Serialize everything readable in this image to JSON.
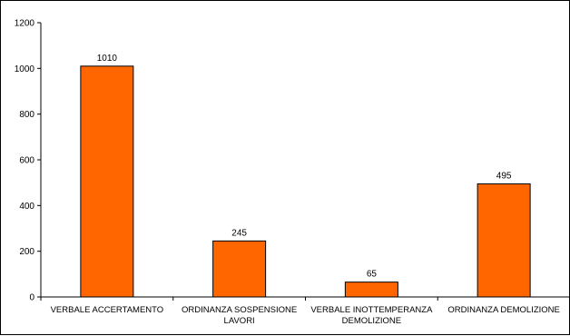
{
  "chart_data": {
    "type": "bar",
    "categories": [
      [
        "VERBALE ACCERTAMENTO"
      ],
      [
        "ORDINANZA SOSPENSIONE",
        "LAVORI"
      ],
      [
        "VERBALE INOTTEMPERANZA",
        "DEMOLIZIONE"
      ],
      [
        "ORDINANZA DEMOLIZIONE"
      ]
    ],
    "values": [
      1010,
      245,
      65,
      495
    ],
    "data_labels": [
      "1010",
      "245",
      "65",
      "495"
    ],
    "y_ticks": [
      0,
      200,
      400,
      600,
      800,
      1000,
      1200
    ],
    "y_tick_labels": [
      "0",
      "200",
      "400",
      "600",
      "800",
      "1000",
      "1200"
    ],
    "ylim": [
      0,
      1200
    ],
    "grid": false,
    "legend": "none",
    "colors": {
      "bar_fill": "#ff6600",
      "bar_stroke": "#000000",
      "axis": "#000000",
      "text": "#000000"
    }
  }
}
